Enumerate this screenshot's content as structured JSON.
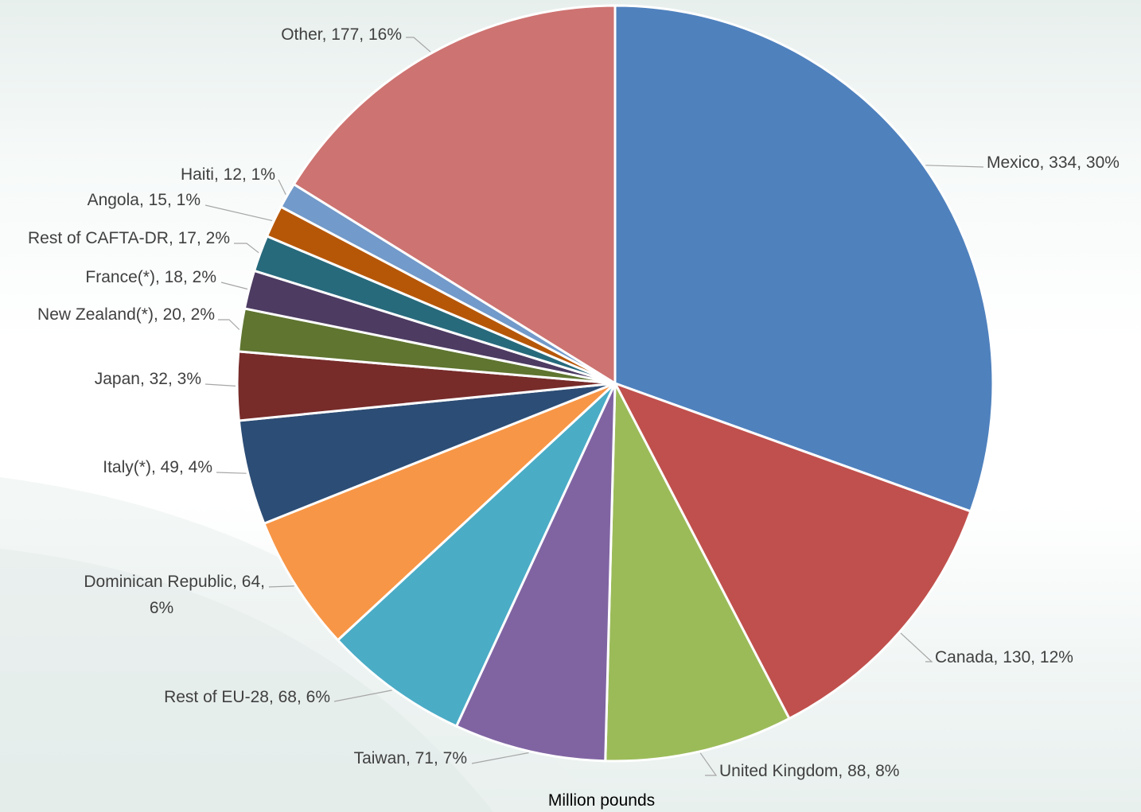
{
  "chart_data": {
    "type": "pie",
    "xlabel": "Million pounds",
    "slices": [
      {
        "label": "Mexico",
        "value": 334,
        "percent": "30%",
        "color": "#4f81bd"
      },
      {
        "label": "Canada",
        "value": 130,
        "percent": "12%",
        "color": "#c0504d"
      },
      {
        "label": "United Kingdom",
        "value": 88,
        "percent": "8%",
        "color": "#9bbb59"
      },
      {
        "label": "Taiwan",
        "value": 71,
        "percent": "7%",
        "color": "#8064a2"
      },
      {
        "label": "Rest of EU-28",
        "value": 68,
        "percent": "6%",
        "color": "#4bacc6"
      },
      {
        "label": "Dominican Republic",
        "value": 64,
        "percent": "6%",
        "color": "#f79646"
      },
      {
        "label": "Italy(*)",
        "value": 49,
        "percent": "4%",
        "color": "#2c4d75"
      },
      {
        "label": "Japan",
        "value": 32,
        "percent": "3%",
        "color": "#772c2a"
      },
      {
        "label": "New Zealand(*)",
        "value": 20,
        "percent": "2%",
        "color": "#5f7530"
      },
      {
        "label": "France(*)",
        "value": 18,
        "percent": "2%",
        "color": "#4d3b62"
      },
      {
        "label": "Rest of CAFTA-DR",
        "value": 17,
        "percent": "2%",
        "color": "#276a7c"
      },
      {
        "label": "Angola",
        "value": 15,
        "percent": "1%",
        "color": "#b65708"
      },
      {
        "label": "Haiti",
        "value": 12,
        "percent": "1%",
        "color": "#729aca"
      },
      {
        "label": "Other",
        "value": 177,
        "percent": "16%",
        "color": "#cd7371"
      }
    ]
  }
}
